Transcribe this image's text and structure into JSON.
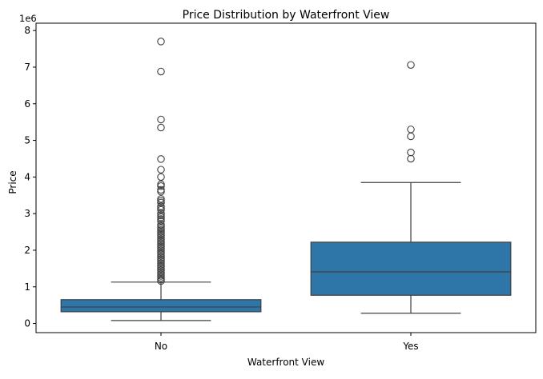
{
  "chart_data": {
    "type": "boxplot",
    "title": "Price Distribution by Waterfront View",
    "xlabel": "Waterfront View",
    "ylabel": "Price",
    "y_scale_label": "1e6",
    "y_ticks": [
      0,
      1,
      2,
      3,
      4,
      5,
      6,
      7,
      8
    ],
    "ylim": [
      -0.25,
      8.2
    ],
    "categories": [
      "No",
      "Yes"
    ],
    "box_color": "#2e75a8",
    "series": [
      {
        "category": "No",
        "whisker_low": 0.08,
        "q1": 0.32,
        "median": 0.45,
        "q3": 0.65,
        "whisker_high": 1.13,
        "outliers": [
          7.7,
          6.88,
          5.57,
          5.35,
          4.49,
          4.2,
          4.0,
          3.8,
          3.75,
          3.65,
          3.6,
          3.4,
          3.35,
          3.3,
          3.2,
          3.15,
          3.1,
          3.0,
          2.95,
          2.9,
          2.85,
          2.8,
          2.7,
          2.65,
          2.6,
          2.55,
          2.5,
          2.45,
          2.4,
          2.35,
          2.3,
          2.25,
          2.2,
          2.15,
          2.1,
          2.05,
          2.0,
          1.95,
          1.9,
          1.85,
          1.8,
          1.75,
          1.7,
          1.65,
          1.6,
          1.55,
          1.5,
          1.45,
          1.4,
          1.35,
          1.3,
          1.25,
          1.2,
          1.16
        ]
      },
      {
        "category": "Yes",
        "whisker_low": 0.28,
        "q1": 0.77,
        "median": 1.41,
        "q3": 2.22,
        "whisker_high": 3.85,
        "outliers": [
          7.06,
          5.3,
          5.11,
          4.67,
          4.5
        ]
      }
    ]
  }
}
